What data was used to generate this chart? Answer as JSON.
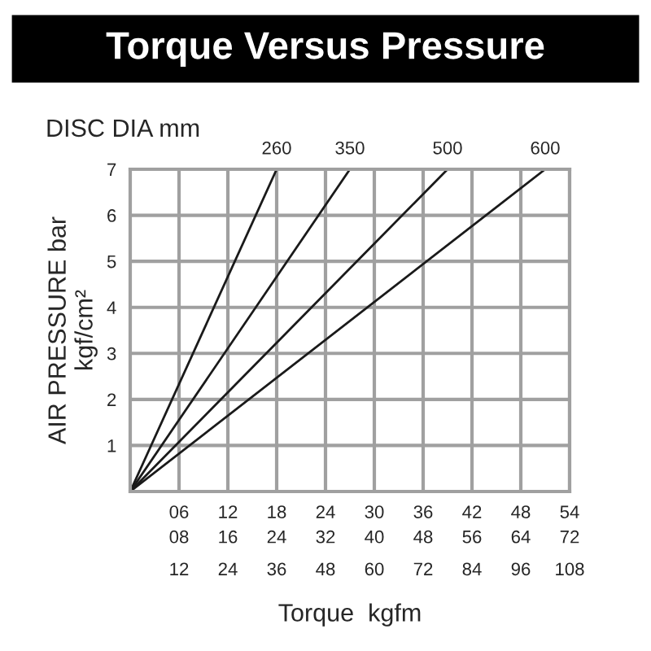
{
  "chart_data": {
    "type": "line",
    "title": "Torque Versus Pressure",
    "legend_title": "DISC DIA mm",
    "xlabel": "Torque  kgfm",
    "ylabel": "AIR PRESSURE bar\nkgf/cm²",
    "series": [
      {
        "name": "260",
        "color": "#1a1a1a",
        "x": [
          0,
          18
        ],
        "values": [
          0,
          7
        ]
      },
      {
        "name": "350",
        "color": "#1a1a1a",
        "x": [
          0,
          27
        ],
        "values": [
          0,
          7
        ]
      },
      {
        "name": "500",
        "color": "#1a1a1a",
        "x": [
          0,
          39
        ],
        "values": [
          0,
          7
        ]
      },
      {
        "name": "600",
        "color": "#1a1a1a",
        "x": [
          0,
          51
        ],
        "values": [
          0,
          7
        ]
      }
    ],
    "xlim": [
      0,
      54
    ],
    "xticks": [
      {
        "value": 6,
        "label": "06"
      },
      12,
      18,
      24,
      30,
      36,
      42,
      48,
      54
    ],
    "x2lim": [
      0,
      72
    ],
    "x2ticks": [
      {
        "value": 8,
        "label": "08"
      },
      16,
      24,
      32,
      40,
      48,
      56,
      64,
      72
    ],
    "annotations": [
      "12",
      "24",
      "36",
      "48",
      "60",
      "72",
      "84",
      "96",
      "108"
    ],
    "ylim": [
      0,
      7
    ],
    "yticks": [
      1,
      2,
      3,
      4,
      5,
      6,
      7
    ],
    "grid": true,
    "legend": false,
    "marker": "none",
    "line_style": "solid"
  }
}
